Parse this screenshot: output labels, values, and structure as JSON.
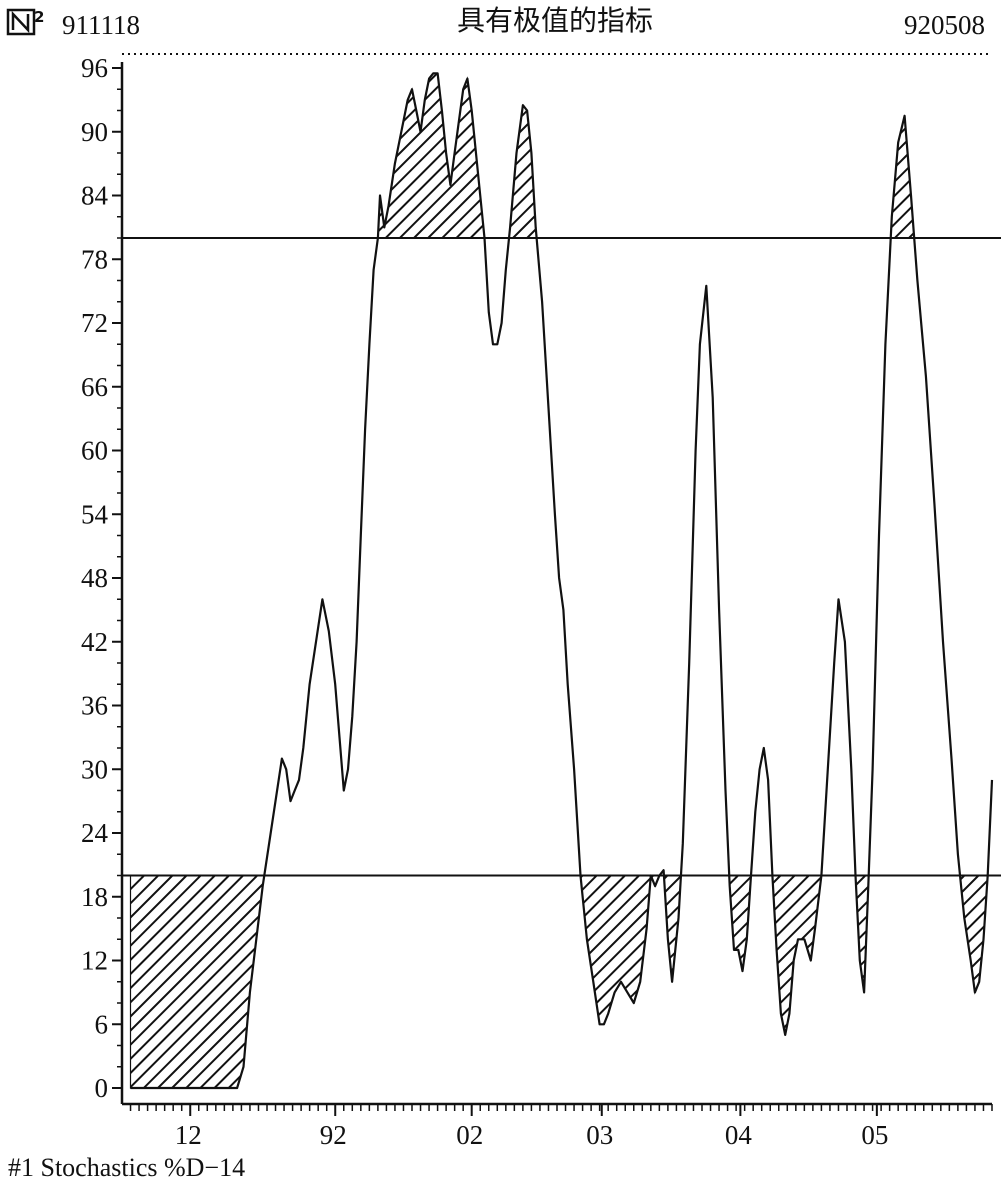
{
  "header": {
    "logo": "N²",
    "start_date": "911118",
    "title": "具有极值的指标",
    "end_date": "920508"
  },
  "footer": {
    "caption": "#1 Stochastics %D−14"
  },
  "chart_data": {
    "type": "line",
    "title": "具有极值的指标",
    "series": [
      {
        "name": "Stochastics %D-14",
        "points": [
          [
            0,
            0
          ],
          [
            12,
            0
          ],
          [
            24,
            0
          ],
          [
            36,
            0
          ],
          [
            46,
            0
          ],
          [
            50,
            0
          ],
          [
            53,
            2
          ],
          [
            56,
            9
          ],
          [
            59,
            14
          ],
          [
            62,
            19
          ],
          [
            65,
            23
          ],
          [
            68,
            27
          ],
          [
            71,
            31
          ],
          [
            73,
            30
          ],
          [
            75,
            27
          ],
          [
            77,
            28
          ],
          [
            79,
            29
          ],
          [
            81,
            32
          ],
          [
            84,
            38
          ],
          [
            87,
            42
          ],
          [
            90,
            46
          ],
          [
            93,
            43
          ],
          [
            96,
            38
          ],
          [
            98,
            33
          ],
          [
            100,
            28
          ],
          [
            102,
            30
          ],
          [
            104,
            35
          ],
          [
            106,
            42
          ],
          [
            108,
            52
          ],
          [
            110,
            62
          ],
          [
            112,
            70
          ],
          [
            114,
            77
          ],
          [
            116,
            80
          ],
          [
            117,
            84
          ],
          [
            119,
            81
          ],
          [
            121,
            83
          ],
          [
            124,
            87
          ],
          [
            127,
            90
          ],
          [
            130,
            93
          ],
          [
            132,
            94
          ],
          [
            134,
            92
          ],
          [
            136,
            90
          ],
          [
            138,
            93
          ],
          [
            140,
            95
          ],
          [
            142,
            95.5
          ],
          [
            144,
            95.5
          ],
          [
            146,
            92
          ],
          [
            148,
            88
          ],
          [
            150,
            85
          ],
          [
            152,
            88
          ],
          [
            154,
            91
          ],
          [
            156,
            94
          ],
          [
            158,
            95
          ],
          [
            160,
            92
          ],
          [
            163,
            86
          ],
          [
            166,
            80
          ],
          [
            168,
            73
          ],
          [
            170,
            70
          ],
          [
            172,
            70
          ],
          [
            174,
            72
          ],
          [
            176,
            77
          ],
          [
            178,
            81
          ],
          [
            181,
            88
          ],
          [
            184,
            92.5
          ],
          [
            186,
            92
          ],
          [
            188,
            88
          ],
          [
            190,
            81
          ],
          [
            193,
            74
          ],
          [
            196,
            64
          ],
          [
            199,
            54
          ],
          [
            201,
            48
          ],
          [
            203,
            45
          ],
          [
            205,
            38
          ],
          [
            208,
            30
          ],
          [
            211,
            20
          ],
          [
            214,
            14
          ],
          [
            217,
            10
          ],
          [
            220,
            6
          ],
          [
            222,
            6
          ],
          [
            224,
            7
          ],
          [
            227,
            9
          ],
          [
            230,
            10
          ],
          [
            233,
            9
          ],
          [
            236,
            8
          ],
          [
            239,
            10
          ],
          [
            242,
            15
          ],
          [
            244,
            20
          ],
          [
            246,
            19
          ],
          [
            248,
            20
          ],
          [
            250,
            20.5
          ],
          [
            252,
            14
          ],
          [
            254,
            10
          ],
          [
            257,
            16
          ],
          [
            259,
            23
          ],
          [
            262,
            40
          ],
          [
            265,
            60
          ],
          [
            267,
            70
          ],
          [
            270,
            75.5
          ],
          [
            273,
            65
          ],
          [
            276,
            45
          ],
          [
            279,
            28
          ],
          [
            281,
            19
          ],
          [
            283,
            13
          ],
          [
            285,
            13
          ],
          [
            287,
            11
          ],
          [
            289,
            14
          ],
          [
            291,
            20
          ],
          [
            293,
            26
          ],
          [
            295,
            30
          ],
          [
            297,
            32
          ],
          [
            299,
            29
          ],
          [
            301,
            20
          ],
          [
            303,
            13
          ],
          [
            305,
            7
          ],
          [
            307,
            5
          ],
          [
            309,
            7
          ],
          [
            311,
            12
          ],
          [
            313,
            14
          ],
          [
            316,
            14
          ],
          [
            319,
            12
          ],
          [
            321,
            15
          ],
          [
            324,
            20
          ],
          [
            327,
            30
          ],
          [
            330,
            40
          ],
          [
            332,
            46
          ],
          [
            335,
            42
          ],
          [
            338,
            30
          ],
          [
            340,
            20
          ],
          [
            342,
            12
          ],
          [
            344,
            9
          ],
          [
            346,
            19
          ],
          [
            348,
            30
          ],
          [
            351,
            52
          ],
          [
            354,
            70
          ],
          [
            357,
            82
          ],
          [
            360,
            89
          ],
          [
            363,
            91.5
          ],
          [
            366,
            84
          ],
          [
            369,
            76
          ],
          [
            373,
            67
          ],
          [
            377,
            55
          ],
          [
            381,
            42
          ],
          [
            385,
            31
          ],
          [
            388,
            22
          ],
          [
            391,
            16
          ],
          [
            394,
            12
          ],
          [
            396,
            9
          ],
          [
            398,
            10
          ],
          [
            400,
            14
          ],
          [
            402,
            20
          ],
          [
            404,
            29
          ]
        ]
      }
    ],
    "x_categories": [
      {
        "label": "12",
        "x": 28
      },
      {
        "label": "92",
        "x": 96
      },
      {
        "label": "02",
        "x": 160
      },
      {
        "label": "03",
        "x": 221
      },
      {
        "label": "04",
        "x": 286
      },
      {
        "label": "05",
        "x": 350
      }
    ],
    "ylim": [
      0,
      96
    ],
    "yticks": [
      0,
      6,
      12,
      18,
      24,
      30,
      36,
      42,
      48,
      54,
      60,
      66,
      72,
      78,
      84,
      90,
      96
    ],
    "xlim": [
      -4,
      404
    ],
    "reference_lines": [
      80,
      20
    ],
    "hatched_beyond_extremes": true,
    "xlabel": "",
    "ylabel": ""
  }
}
